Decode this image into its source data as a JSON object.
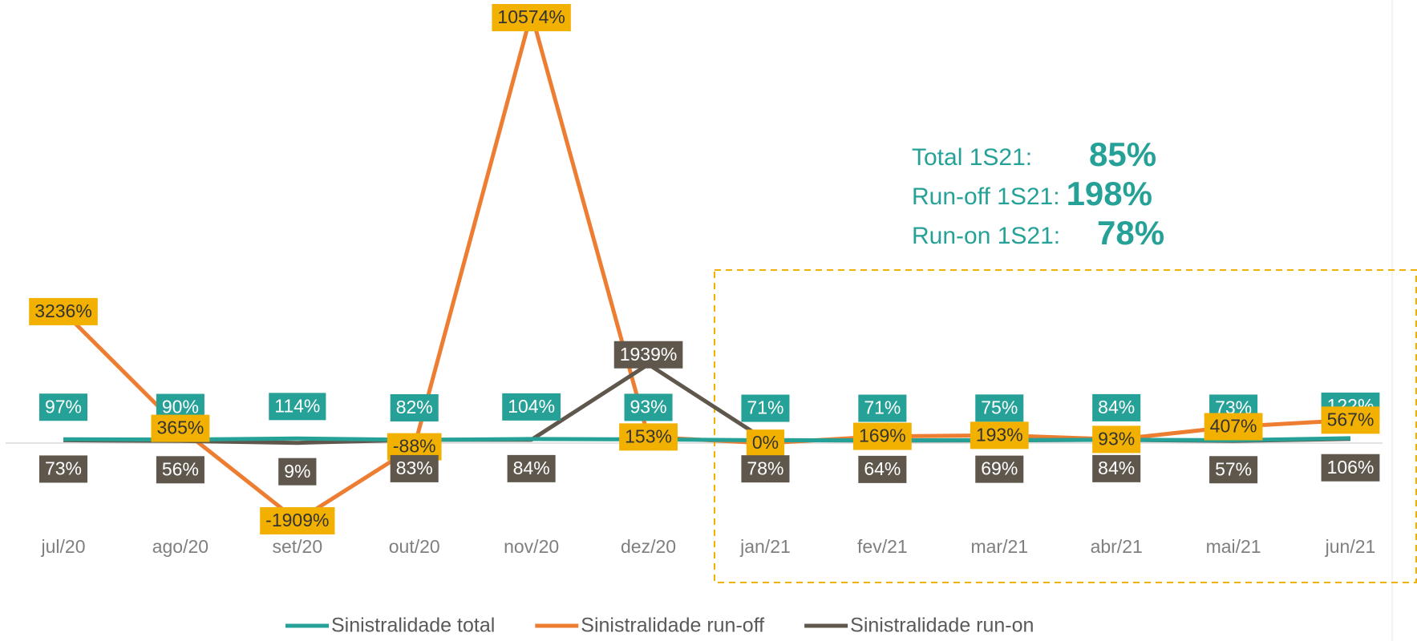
{
  "chart_data": {
    "type": "line",
    "categories": [
      "jul/20",
      "ago/20",
      "set/20",
      "out/20",
      "nov/20",
      "dez/20",
      "jan/21",
      "fev/21",
      "mar/21",
      "abr/21",
      "mai/21",
      "jun/21"
    ],
    "series": [
      {
        "name": "Sinistralidade total",
        "color": "#26a197",
        "label_text_color": "#ffffff",
        "values": [
          97,
          90,
          114,
          82,
          104,
          93,
          71,
          71,
          75,
          84,
          73,
          122
        ],
        "value_labels": [
          "97%",
          "90%",
          "114%",
          "82%",
          "104%",
          "93%",
          "71%",
          "71%",
          "75%",
          "84%",
          "73%",
          "122%"
        ]
      },
      {
        "name": "Sinistralidade run-off",
        "color": "#ed7d31",
        "label_color": "#f2b100",
        "label_text_color": "#333333",
        "values": [
          3236,
          365,
          -1909,
          -88,
          10574,
          153,
          0,
          169,
          193,
          93,
          407,
          567
        ],
        "value_labels": [
          "3236%",
          "365%",
          "-1909%",
          "-88%",
          "10574%",
          "153%",
          "0%",
          "169%",
          "193%",
          "93%",
          "407%",
          "567%"
        ]
      },
      {
        "name": "Sinistralidade run-on",
        "color": "#5f574c",
        "label_text_color": "#ffffff",
        "values": [
          73,
          56,
          9,
          83,
          84,
          1939,
          78,
          64,
          69,
          84,
          57,
          106
        ],
        "value_labels": [
          "73%",
          "56%",
          "9%",
          "83%",
          "84%",
          "1939%",
          "78%",
          "64%",
          "69%",
          "84%",
          "57%",
          "106%"
        ]
      }
    ],
    "ylim": [
      -2500,
      10900
    ],
    "annotations": [
      {
        "label": "Total 1S21:",
        "value": "85%"
      },
      {
        "label": "Run-off 1S21:",
        "value": "198%"
      },
      {
        "label": "Run-on 1S21:",
        "value": "78%"
      }
    ],
    "legend": "bottom"
  }
}
